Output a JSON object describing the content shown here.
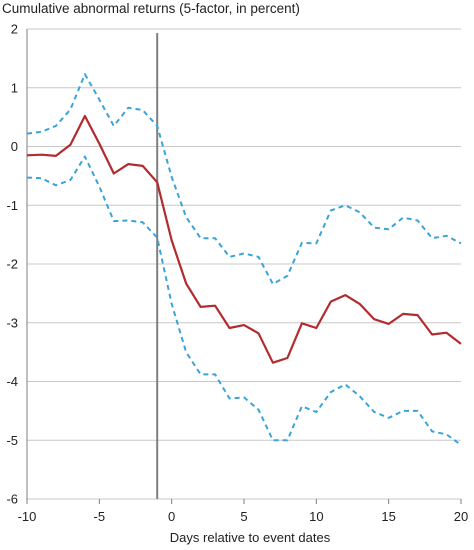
{
  "chart_data": {
    "type": "line",
    "title": "Cumulative abnormal returns (5-factor, in percent)",
    "xlabel": "Days relative to event dates",
    "ylabel": "",
    "xlim": [
      -10,
      20
    ],
    "ylim": [
      -6,
      2
    ],
    "xticks": [
      -10,
      -5,
      0,
      5,
      10,
      15,
      20
    ],
    "xtick_labels": [
      "-10",
      "-5",
      "0",
      "5",
      "10",
      "15",
      "20"
    ],
    "yticks": [
      2,
      1,
      0,
      -1,
      -2,
      -3,
      -4,
      -5,
      -6
    ],
    "ytick_labels": [
      "2",
      "1",
      "0",
      "-1",
      "-2",
      "-3",
      "-4",
      "-5",
      "-6"
    ],
    "grid": "horizontal",
    "legend": "none",
    "event_marker_x": -1,
    "x": [
      -10,
      -9,
      -8,
      -7,
      -6,
      -5,
      -4,
      -3,
      -2,
      -1,
      0,
      1,
      2,
      3,
      4,
      5,
      6,
      7,
      8,
      9,
      10,
      11,
      12,
      13,
      14,
      15,
      16,
      17,
      18,
      19,
      20
    ],
    "series": [
      {
        "role": "estimate",
        "style": "solid",
        "color": "#b22b2e",
        "values": [
          -0.15,
          -0.14,
          -0.16,
          0.03,
          0.52,
          0.05,
          -0.46,
          -0.3,
          -0.33,
          -0.61,
          -1.6,
          -2.33,
          -2.73,
          -2.71,
          -3.09,
          -3.04,
          -3.18,
          -3.68,
          -3.6,
          -3.01,
          -3.09,
          -2.64,
          -2.53,
          -2.68,
          -2.94,
          -3.02,
          -2.85,
          -2.87,
          -3.2,
          -3.17,
          -3.36
        ]
      },
      {
        "role": "upper band",
        "style": "dashed",
        "color": "#3aa4d8",
        "values": [
          0.22,
          0.25,
          0.35,
          0.63,
          1.23,
          0.8,
          0.35,
          0.66,
          0.62,
          0.35,
          -0.52,
          -1.2,
          -1.56,
          -1.56,
          -1.88,
          -1.82,
          -1.88,
          -2.34,
          -2.2,
          -1.64,
          -1.65,
          -1.09,
          -1.0,
          -1.12,
          -1.38,
          -1.41,
          -1.21,
          -1.26,
          -1.56,
          -1.52,
          -1.65
        ]
      },
      {
        "role": "lower band",
        "style": "dashed",
        "color": "#3aa4d8",
        "values": [
          -0.53,
          -0.54,
          -0.66,
          -0.57,
          -0.17,
          -0.68,
          -1.27,
          -1.26,
          -1.29,
          -1.55,
          -2.68,
          -3.5,
          -3.88,
          -3.88,
          -4.29,
          -4.27,
          -4.48,
          -5.0,
          -5.0,
          -4.42,
          -4.52,
          -4.18,
          -4.05,
          -4.25,
          -4.52,
          -4.62,
          -4.5,
          -4.5,
          -4.85,
          -4.9,
          -5.08
        ]
      }
    ],
    "colors": {
      "estimate": "#b22b2e",
      "band": "#3aa4d8",
      "event_marker": "#7f7f7f",
      "grid": "#c8c8c8",
      "axis": "#7f7f7f"
    }
  }
}
